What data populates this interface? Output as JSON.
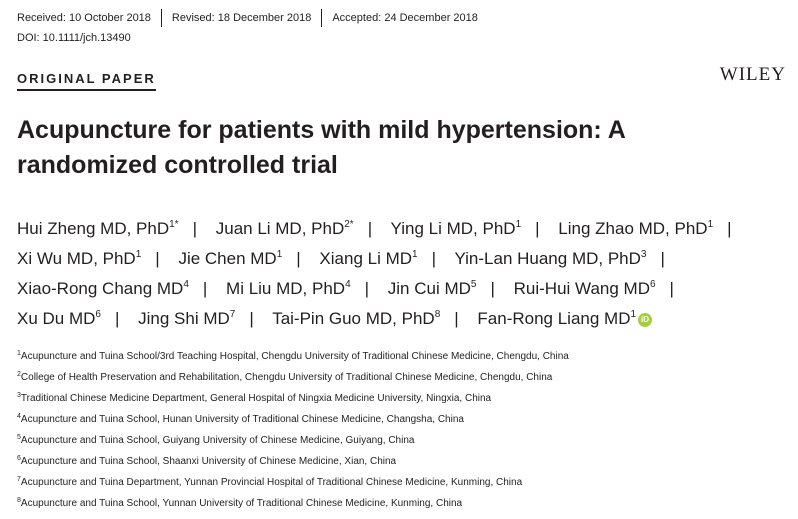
{
  "header": {
    "received": "Received: 10 October 2018",
    "revised": "Revised: 18 December 2018",
    "accepted": "Accepted: 24 December 2018",
    "doi": "DOI: 10.1111/jch.13490",
    "section": "ORIGINAL PAPER",
    "publisher": "WILEY"
  },
  "title": "Acupuncture for patients with mild hypertension: A randomized controlled trial",
  "authors": [
    {
      "name": "Hui Zheng MD, PhD",
      "sup": "1*"
    },
    {
      "name": "Juan Li MD, PhD",
      "sup": "2*"
    },
    {
      "name": "Ying Li MD, PhD",
      "sup": "1"
    },
    {
      "name": "Ling Zhao MD, PhD",
      "sup": "1"
    },
    {
      "name": "Xi Wu MD, PhD",
      "sup": "1"
    },
    {
      "name": "Jie Chen MD",
      "sup": "1"
    },
    {
      "name": "Xiang Li MD",
      "sup": "1"
    },
    {
      "name": "Yin-Lan Huang MD, PhD",
      "sup": "3"
    },
    {
      "name": "Xiao-Rong Chang MD",
      "sup": "4"
    },
    {
      "name": "Mi Liu MD, PhD",
      "sup": "4"
    },
    {
      "name": "Jin Cui MD",
      "sup": "5"
    },
    {
      "name": "Rui-Hui Wang MD",
      "sup": "6"
    },
    {
      "name": "Xu Du MD",
      "sup": "6"
    },
    {
      "name": "Jing Shi MD",
      "sup": "7"
    },
    {
      "name": "Tai-Pin Guo MD, PhD",
      "sup": "8"
    },
    {
      "name": "Fan-Rong Liang MD",
      "sup": "1"
    }
  ],
  "separator": "|",
  "orcid_icon": "orcid-icon",
  "orcid_text": "iD",
  "orcid_color": "#a6ce39",
  "affiliations": [
    {
      "num": "1",
      "text": "Acupuncture and Tuina School/3rd Teaching Hospital, Chengdu University of Traditional Chinese Medicine, Chengdu, China"
    },
    {
      "num": "2",
      "text": "College of Health Preservation and Rehabilitation, Chengdu University of Traditional Chinese Medicine, Chengdu, China"
    },
    {
      "num": "3",
      "text": "Traditional Chinese Medicine Department, General Hospital of Ningxia Medicine University, Ningxia, China"
    },
    {
      "num": "4",
      "text": "Acupuncture and Tuina School, Hunan University of Traditional Chinese Medicine, Changsha, China"
    },
    {
      "num": "5",
      "text": "Acupuncture and Tuina School, Guiyang University of Chinese Medicine, Guiyang, China"
    },
    {
      "num": "6",
      "text": "Acupuncture and Tuina School, Shaanxi University of Chinese Medicine, Xian, China"
    },
    {
      "num": "7",
      "text": "Acupuncture and Tuina Department, Yunnan Provincial Hospital of Traditional Chinese Medicine, Kunming, China"
    },
    {
      "num": "8",
      "text": "Acupuncture and Tuina School, Yunnan University of Traditional Chinese Medicine, Kunming, China"
    }
  ]
}
